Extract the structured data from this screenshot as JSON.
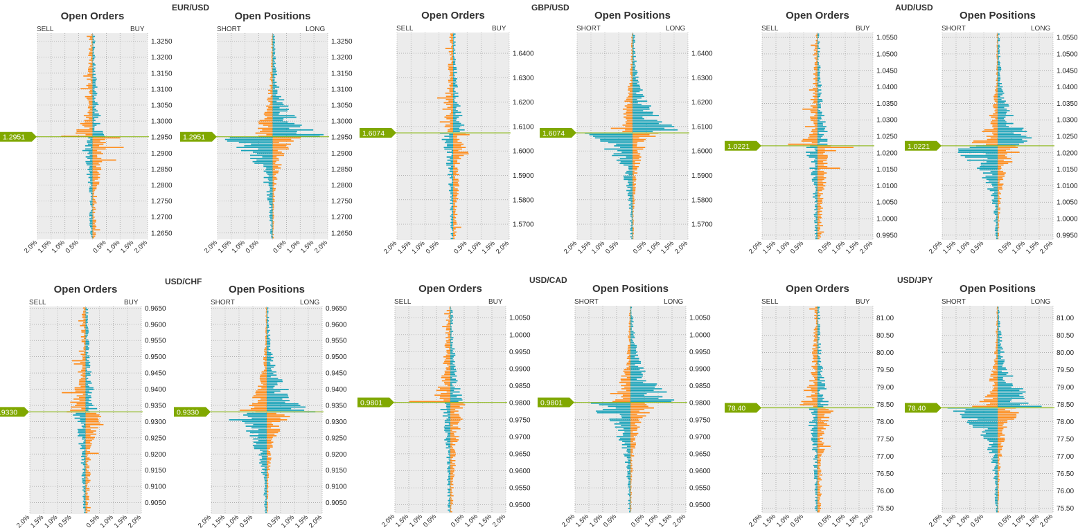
{
  "colors": {
    "buy_long": "#16a2b8",
    "sell_short": "#ff8c1a",
    "plot_bg": "#ececec",
    "grid": "#9a9a9a",
    "price_line": "#8db81a",
    "price_tag": "#80a800"
  },
  "labels": {
    "orders_title": "Open Orders",
    "positions_title": "Open Positions",
    "sell": "SELL",
    "buy": "BUY",
    "short": "SHORT",
    "long": "LONG"
  },
  "x_ticks": [
    "2.0%",
    "1.5%",
    "1.0%",
    "0.5%",
    "",
    "0.5%",
    "1.0%",
    "1.5%",
    "2.0%"
  ],
  "chart_data": [
    {
      "type": "bar",
      "pair": "EUR/USD",
      "current_price": "1.2951",
      "current_value": 1.2951,
      "ylim": [
        1.263,
        1.3275
      ],
      "y_ticks": [
        "1.3250",
        "1.3200",
        "1.3150",
        "1.3100",
        "1.3050",
        "1.3000",
        "1.2950",
        "1.2900",
        "1.2850",
        "1.2800",
        "1.2750",
        "1.2700",
        "1.2650"
      ],
      "xlim_pct": [
        -2.0,
        2.0
      ]
    },
    {
      "type": "bar",
      "pair": "GBP/USD",
      "current_price": "1.6074",
      "current_value": 1.6074,
      "ylim": [
        1.5635,
        1.6485
      ],
      "y_ticks": [
        "1.6400",
        "1.6300",
        "1.6200",
        "1.6100",
        "1.6000",
        "1.5900",
        "1.5800",
        "1.5700"
      ],
      "xlim_pct": [
        -2.0,
        2.0
      ]
    },
    {
      "type": "bar",
      "pair": "AUD/USD",
      "current_price": "1.0221",
      "current_value": 1.0221,
      "ylim": [
        0.9935,
        1.0565
      ],
      "y_ticks": [
        "1.0550",
        "1.0500",
        "1.0450",
        "1.0400",
        "1.0350",
        "1.0300",
        "1.0250",
        "1.0200",
        "1.0150",
        "1.0100",
        "1.0050",
        "1.0000",
        "0.9950"
      ],
      "xlim_pct": [
        -2.0,
        2.0
      ]
    },
    {
      "type": "bar",
      "pair": "USD/CHF",
      "current_price": "0.9330",
      "current_value": 0.933,
      "ylim": [
        0.9015,
        0.9655
      ],
      "y_ticks": [
        "0.9650",
        "0.9600",
        "0.9550",
        "0.9500",
        "0.9450",
        "0.9400",
        "0.9350",
        "0.9300",
        "0.9250",
        "0.9200",
        "0.9150",
        "0.9100",
        "0.9050"
      ],
      "xlim_pct": [
        -2.0,
        2.0
      ]
    },
    {
      "type": "bar",
      "pair": "USD/CAD",
      "current_price": "0.9801",
      "current_value": 0.9801,
      "ylim": [
        0.9475,
        1.0085
      ],
      "y_ticks": [
        "1.0050",
        "1.0000",
        "0.9950",
        "0.9900",
        "0.9850",
        "0.9800",
        "0.9750",
        "0.9700",
        "0.9650",
        "0.9600",
        "0.9550",
        "0.9500"
      ],
      "xlim_pct": [
        -2.0,
        2.0
      ]
    },
    {
      "type": "bar",
      "pair": "USD/JPY",
      "current_price": "78.40",
      "current_value": 78.4,
      "ylim": [
        75.35,
        81.35
      ],
      "y_ticks": [
        "81.00",
        "80.50",
        "80.00",
        "79.50",
        "79.00",
        "78.50",
        "78.00",
        "77.50",
        "77.00",
        "76.50",
        "76.00",
        "75.50"
      ],
      "xlim_pct": [
        -2.0,
        2.0
      ]
    }
  ]
}
